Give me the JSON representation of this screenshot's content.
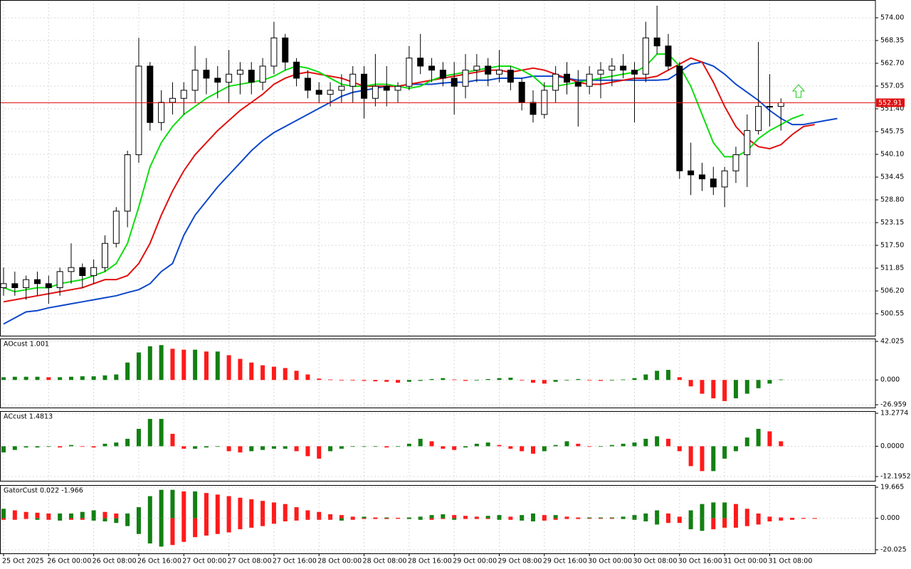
{
  "chart_data": [
    {
      "type": "candlestick",
      "categories": [
        "25 Oct 2025",
        null,
        null,
        null,
        "26 Oct 00:00",
        null,
        null,
        null,
        "26 Oct 08:00",
        null,
        null,
        null,
        "26 Oct 16:00",
        null,
        null,
        null,
        "27 Oct 00:00",
        null,
        null,
        null,
        "27 Oct 08:00",
        null,
        null,
        null,
        "27 Oct 16:00",
        null,
        null,
        null,
        "28 Oct 00:00",
        null,
        null,
        null,
        "28 Oct 08:00",
        null,
        null,
        null,
        "28 Oct 16:00",
        null,
        null,
        null,
        "29 Oct 00:00",
        null,
        null,
        null,
        "29 Oct 08:00",
        null,
        null,
        null,
        "29 Oct 16:00",
        null,
        null,
        null,
        "30 Oct 00:00",
        null,
        null,
        null,
        "30 Oct 08:00",
        null,
        null,
        null,
        "30 Oct 16:00",
        null,
        null,
        null,
        "31 Oct 00:00",
        null,
        null,
        null,
        "31 Oct 08:00",
        null,
        null,
        null,
        null,
        null,
        null
      ],
      "open": [
        507,
        508,
        507,
        509,
        508,
        507,
        511,
        512,
        510,
        512,
        518,
        526,
        540,
        562,
        548,
        553,
        554,
        556,
        561,
        559,
        558,
        560,
        561,
        558,
        562,
        569,
        563,
        559,
        556,
        555,
        556,
        557,
        560,
        554,
        557,
        556,
        557,
        564,
        562,
        561,
        559,
        557,
        561,
        562,
        560,
        561,
        558,
        553,
        550,
        556,
        560,
        558,
        557,
        560,
        561,
        562,
        561,
        560,
        569,
        567,
        562,
        536,
        535,
        534,
        532,
        536,
        540,
        546,
        552,
        552,
        null,
        null,
        null,
        null,
        null
      ],
      "high": [
        512,
        511,
        510,
        511,
        510,
        512,
        518,
        513,
        514,
        520,
        527,
        541,
        569,
        563,
        556,
        558,
        558,
        567,
        564,
        562,
        566,
        563,
        563,
        564,
        573,
        570,
        564,
        561,
        558,
        558,
        560,
        562,
        562,
        565,
        562,
        558,
        567,
        570,
        564,
        563,
        563,
        565,
        565,
        564,
        566,
        562,
        559,
        556,
        558,
        562,
        563,
        561,
        562,
        563,
        564,
        565,
        563,
        573,
        577,
        570,
        563,
        543,
        538,
        537,
        537,
        542,
        550,
        568,
        560,
        554,
        null,
        null,
        null,
        null,
        null
      ],
      "low": [
        505,
        505,
        504,
        505,
        503,
        505,
        508,
        507,
        508,
        511,
        517,
        522,
        538,
        546,
        546,
        550,
        550,
        553,
        555,
        554,
        553,
        555,
        555,
        556,
        560,
        561,
        557,
        554,
        553,
        552,
        553,
        553,
        549,
        552,
        552,
        553,
        556,
        560,
        558,
        557,
        550,
        554,
        558,
        557,
        558,
        556,
        551,
        548,
        549,
        553,
        555,
        547,
        555,
        554,
        557,
        559,
        548,
        558,
        565,
        561,
        534,
        530,
        531,
        530,
        527,
        533,
        532,
        545,
        547,
        546,
        null,
        null,
        null,
        null,
        null
      ],
      "close": [
        508,
        507,
        509,
        508,
        507,
        511,
        512,
        510,
        512,
        518,
        526,
        540,
        562,
        548,
        553,
        554,
        556,
        561,
        559,
        558,
        560,
        561,
        558,
        562,
        569,
        563,
        559,
        556,
        555,
        556,
        557,
        560,
        554,
        557,
        556,
        557,
        564,
        562,
        561,
        559,
        557,
        561,
        562,
        560,
        561,
        558,
        553,
        550,
        556,
        560,
        558,
        557,
        560,
        561,
        562,
        561,
        560,
        569,
        567,
        562,
        536,
        535,
        534,
        532,
        536,
        540,
        546,
        552,
        552,
        552.91,
        null,
        null,
        null,
        null,
        null
      ],
      "bull_color": "#ffffff",
      "bear_color": "#000000",
      "wick_color": "#000000",
      "price_line_color": "#e01010",
      "series": [
        {
          "color": "#0d47c9",
          "values": [
            498,
            499.5,
            501,
            501.3,
            502,
            502.5,
            503,
            503.5,
            504,
            504.5,
            505,
            505.8,
            506.5,
            508,
            511,
            513,
            520,
            525,
            528.5,
            532,
            535,
            538,
            541,
            543.5,
            545.5,
            547,
            548.5,
            550,
            551.5,
            553,
            554.5,
            555.5,
            556,
            556.5,
            557,
            557,
            557.5,
            557.5,
            557.5,
            557.8,
            558,
            558,
            558.5,
            558.5,
            559,
            559,
            559,
            559.5,
            559.5,
            559.5,
            559,
            558.5,
            558.5,
            558.5,
            558.5,
            558.5,
            558.5,
            558.5,
            558.5,
            558.7,
            560.5,
            562.5,
            563,
            562,
            560,
            557.5,
            555.5,
            553.5,
            551,
            549,
            547.5,
            547.5,
            548,
            548.5,
            549
          ]
        },
        {
          "color": "#e01010",
          "values": [
            503.5,
            504,
            504.5,
            505,
            505.5,
            506,
            506.5,
            507,
            508,
            509,
            509,
            510,
            513,
            518,
            525,
            531,
            536,
            540,
            543,
            546,
            548.5,
            551,
            553,
            555,
            557.5,
            559,
            560,
            560.5,
            560,
            559.5,
            559,
            558,
            557,
            557,
            557,
            557,
            557.5,
            558,
            558.5,
            559,
            559.5,
            560,
            560.5,
            561,
            561,
            560.5,
            561,
            561.5,
            561,
            560,
            559,
            558,
            557.5,
            557.5,
            558,
            558.5,
            559,
            559,
            559.5,
            561,
            562.5,
            564,
            563,
            558,
            552,
            547,
            544,
            542,
            541.5,
            542.5,
            545,
            547,
            547.5,
            null,
            null
          ]
        },
        {
          "color": "#10dd10",
          "values": [
            507,
            506,
            506.5,
            507,
            507,
            508,
            508.5,
            509,
            510,
            511,
            513,
            518,
            527,
            537,
            543,
            547,
            550,
            552,
            554,
            555.5,
            557,
            557.5,
            558,
            558.5,
            559.5,
            561,
            562,
            561.5,
            560.5,
            559,
            557.5,
            557,
            557,
            557.5,
            557.5,
            557,
            556.5,
            557,
            558.5,
            559.5,
            560,
            560.5,
            561,
            561.5,
            562,
            562,
            561,
            559.5,
            557,
            557,
            557.5,
            558,
            558.5,
            559,
            559.5,
            560,
            560.5,
            562,
            565,
            565,
            562,
            557,
            550,
            543,
            539.5,
            539.5,
            541,
            544,
            546,
            547.5,
            549,
            550,
            null,
            null,
            null
          ]
        }
      ],
      "ylim": [
        495.08,
        578.41
      ],
      "yticks": [
        {
          "value": 574,
          "label": "574.00"
        },
        568.35,
        {
          "value": 562.7,
          "label": "562.70"
        },
        557.05,
        {
          "value": 551.4,
          "label": "551.40"
        },
        545.75,
        {
          "value": 540.1,
          "label": "540.10"
        },
        534.45,
        {
          "value": 528.8,
          "label": "528.80"
        },
        523.15,
        {
          "value": 517.5,
          "label": "517.50"
        },
        511.85,
        {
          "value": 506.2,
          "label": "506.20"
        },
        500.55
      ],
      "grid": true
    },
    {
      "type": "bar",
      "title": "AOcust 1.001",
      "series": [
        {
          "rise_color": "#128012",
          "fall_color": "#ff1a1a",
          "values": [
            3,
            3.5,
            3.5,
            3.5,
            3,
            3,
            3.5,
            4,
            4,
            5,
            6,
            19,
            30,
            36.7,
            38,
            34,
            33,
            33,
            31,
            31,
            27,
            23,
            19,
            16,
            14.5,
            13,
            10,
            6,
            1.5,
            0.5,
            0,
            -0.5,
            -1,
            -1.5,
            -2,
            -3,
            -2,
            -1,
            1,
            2,
            0.5,
            -1,
            -0.5,
            1,
            2,
            2.5,
            0,
            -3,
            -4,
            -2,
            0,
            1,
            0,
            -1,
            -0.5,
            0.5,
            2,
            6,
            10,
            11,
            3,
            -7,
            -15,
            -20,
            -23,
            -20,
            -15,
            -9,
            -4,
            0.5,
            null,
            null,
            null,
            null,
            null
          ]
        }
      ],
      "ylim": [
        -30.06,
        45.13
      ],
      "yticks": [
        42.025,
        {
          "value": 0,
          "label": "0.000"
        },
        -26.959
      ],
      "grid": true
    },
    {
      "type": "bar",
      "title": "ACcust 1.4813",
      "series": [
        {
          "rise_color": "#128012",
          "fall_color": "#ff1a1a",
          "values": [
            -2.5,
            -1.5,
            -0.5,
            -0.5,
            0,
            -0.5,
            0.5,
            0,
            -0.5,
            1,
            1.5,
            3,
            7,
            11,
            11,
            5,
            -1,
            -1,
            -0.5,
            0,
            -2,
            -2.5,
            -2,
            -1.5,
            -1,
            -1,
            -2,
            -4,
            -5,
            -2,
            -1,
            0,
            0,
            0,
            -0.5,
            0,
            1,
            3,
            2,
            -1,
            -1.5,
            -0.5,
            1,
            1.5,
            0.5,
            -1,
            -2,
            -3,
            -2,
            0.5,
            2,
            1,
            0,
            0,
            0.5,
            1,
            1.5,
            3,
            4,
            3,
            -2,
            -8,
            -10,
            -10,
            -5,
            -2,
            3.5,
            7,
            6,
            2,
            null,
            null,
            null,
            null,
            null
          ]
        }
      ],
      "ylim": [
        -13.91,
        14.14
      ],
      "yticks": [
        13.2774,
        {
          "value": 0,
          "label": "0.0000"
        },
        -12.1952
      ],
      "grid": true
    },
    {
      "type": "bar",
      "title": "GatorCust 0.022 -1.966",
      "series": [
        {
          "rise_color": "#128012",
          "fall_color": "#ff1a1a",
          "values": [
            6,
            5,
            4,
            3.5,
            3,
            3,
            3,
            4,
            5,
            4,
            3,
            3,
            7,
            14,
            18,
            18,
            17,
            17,
            16,
            15,
            14,
            13,
            12,
            11,
            10,
            9,
            7,
            5,
            4,
            2.5,
            2,
            1,
            1,
            0.5,
            0.5,
            0.3,
            0.5,
            1,
            2,
            2.5,
            2,
            1.5,
            1,
            1.5,
            2,
            1,
            2,
            3,
            2,
            2,
            1,
            0.5,
            0.5,
            0.5,
            0.5,
            1,
            2,
            3,
            5,
            3,
            1,
            5,
            9,
            10,
            10,
            9,
            6,
            3,
            1,
            0.5,
            0.3,
            0.2,
            0.1,
            null,
            null
          ]
        },
        {
          "rise_color": "#ff1a1a",
          "fall_color": "#128012",
          "values": [
            -1,
            -1,
            -0.5,
            -1,
            -1,
            -1.5,
            -1,
            -1,
            -1.5,
            -2,
            -3,
            -5,
            -10,
            -16,
            -18,
            -17,
            -15,
            -12,
            -11,
            -10,
            -9,
            -7,
            -6,
            -5,
            -3.5,
            -2,
            -1.5,
            -1,
            -1,
            -1,
            -1.5,
            -1,
            -0.5,
            -0.5,
            -0.5,
            -0.3,
            -0.5,
            -1,
            -1,
            -0.5,
            -1,
            -0.5,
            -0.5,
            -0.5,
            -1,
            -1,
            -1.5,
            -2,
            -1.5,
            -1,
            -0.5,
            -0.5,
            -0.3,
            -0.3,
            -0.3,
            -0.5,
            -1,
            -2,
            -4,
            -3,
            -3,
            -7,
            -8,
            -7,
            -6,
            -6,
            -5,
            -4,
            -2,
            -1.5,
            -1,
            -0.3,
            -0.1,
            null,
            null
          ]
        }
      ],
      "ylim": [
        -22.28,
        21.02
      ],
      "yticks": [
        19.665,
        {
          "value": 0,
          "label": "0.000"
        },
        -20.025
      ],
      "grid": true
    }
  ]
}
